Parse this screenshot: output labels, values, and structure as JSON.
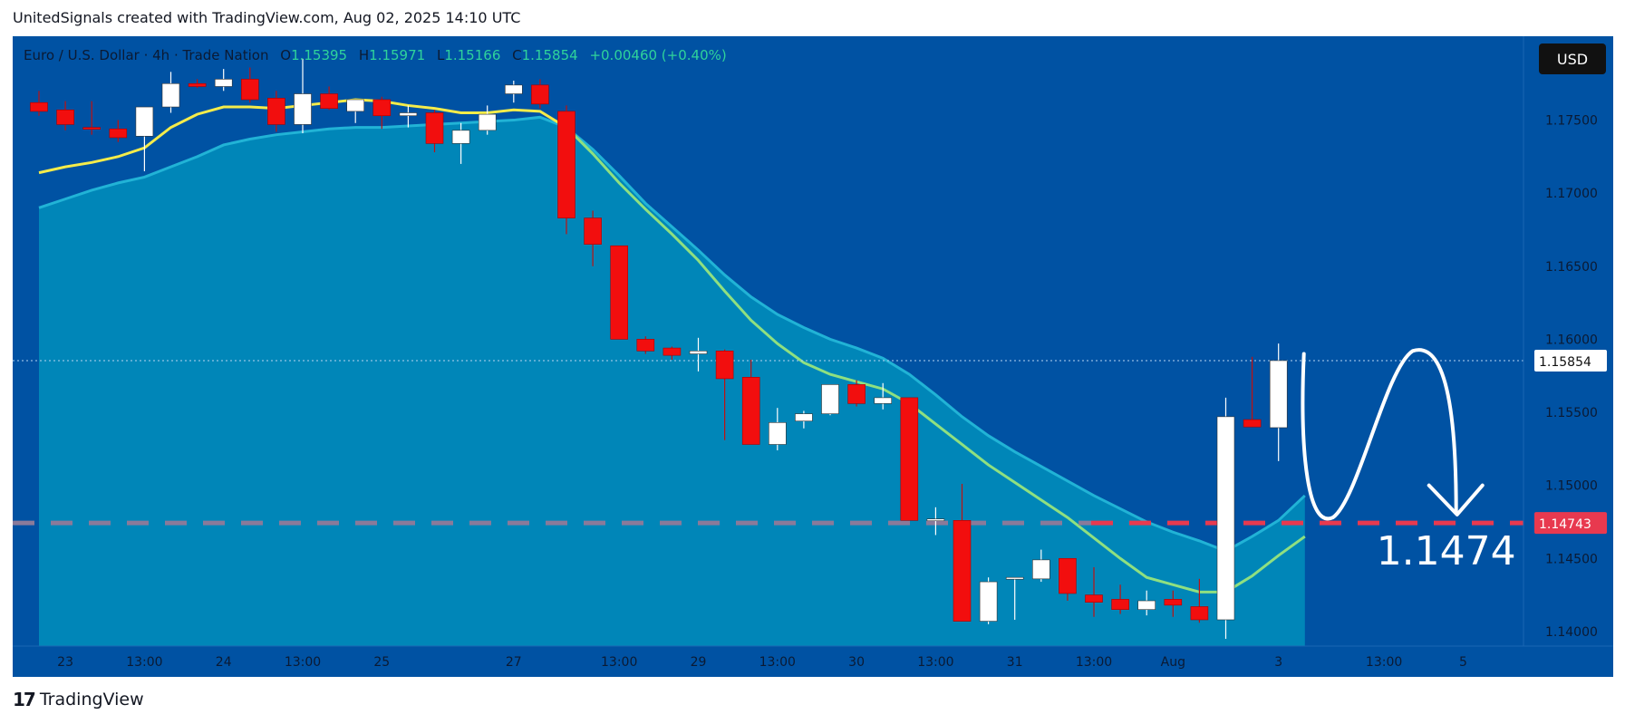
{
  "header": {
    "text": "UnitedSignals created with TradingView.com, Aug 02, 2025 14:10 UTC"
  },
  "legend": {
    "symbol": "Euro / U.S. Dollar · 4h · Trade Nation",
    "o_label": "O",
    "o_value": "1.15395",
    "h_label": "H",
    "h_value": "1.15971",
    "l_label": "L",
    "l_value": "1.15166",
    "c_label": "C",
    "c_value": "1.15854",
    "change": "+0.00460 (+0.40%)"
  },
  "currency_button": "USD",
  "footer": {
    "brand": "TradingView",
    "logo": "17"
  },
  "colors": {
    "background": "#0052a3",
    "cloud_fill": "#0086b8",
    "bull_candle": "#ffffff",
    "bear_candle": "#f20e0e",
    "ma_fast": "#f5ec4a",
    "ma_fast_lower": "#8fe080",
    "ma_slow": "#21b3d6",
    "level_line": "#e8394f",
    "arrow": "#ffffff"
  },
  "chart_data": {
    "type": "candlestick",
    "title": "Euro / U.S. Dollar · 4h · Trade Nation",
    "ylim": [
      1.139,
      1.1795
    ],
    "y_ticks": [
      {
        "value": 1.175,
        "label": "1.17500"
      },
      {
        "value": 1.17,
        "label": "1.17000"
      },
      {
        "value": 1.165,
        "label": "1.16500"
      },
      {
        "value": 1.16,
        "label": "1.16000"
      },
      {
        "value": 1.155,
        "label": "1.15500"
      },
      {
        "value": 1.15,
        "label": "1.15000"
      },
      {
        "value": 1.145,
        "label": "1.14500"
      },
      {
        "value": 1.14,
        "label": "1.14000"
      }
    ],
    "x_ticks": [
      {
        "i": 1,
        "label": "23"
      },
      {
        "i": 4,
        "label": "13:00"
      },
      {
        "i": 7,
        "label": "24"
      },
      {
        "i": 10,
        "label": "13:00"
      },
      {
        "i": 13,
        "label": "25"
      },
      {
        "i": 18,
        "label": "27"
      },
      {
        "i": 22,
        "label": "13:00"
      },
      {
        "i": 25,
        "label": "29"
      },
      {
        "i": 28,
        "label": "13:00"
      },
      {
        "i": 31,
        "label": "30"
      },
      {
        "i": 34,
        "label": "13:00"
      },
      {
        "i": 37,
        "label": "31"
      },
      {
        "i": 40,
        "label": "13:00"
      },
      {
        "i": 43,
        "label": "Aug"
      },
      {
        "i": 47,
        "label": "3"
      },
      {
        "i": 51,
        "label": "13:00"
      },
      {
        "i": 54,
        "label": "5"
      }
    ],
    "candles": [
      {
        "o": 1.1762,
        "h": 1.177,
        "l": 1.1753,
        "c": 1.1756
      },
      {
        "o": 1.1757,
        "h": 1.1763,
        "l": 1.1743,
        "c": 1.1747
      },
      {
        "o": 1.1745,
        "h": 1.1763,
        "l": 1.174,
        "c": 1.1744
      },
      {
        "o": 1.1744,
        "h": 1.175,
        "l": 1.1735,
        "c": 1.1738
      },
      {
        "o": 1.1739,
        "h": 1.1755,
        "l": 1.1715,
        "c": 1.1759
      },
      {
        "o": 1.1759,
        "h": 1.1783,
        "l": 1.1755,
        "c": 1.1775
      },
      {
        "o": 1.1775,
        "h": 1.1778,
        "l": 1.1772,
        "c": 1.1773
      },
      {
        "o": 1.1773,
        "h": 1.1785,
        "l": 1.177,
        "c": 1.1778
      },
      {
        "o": 1.1778,
        "h": 1.1786,
        "l": 1.1762,
        "c": 1.1764
      },
      {
        "o": 1.1765,
        "h": 1.177,
        "l": 1.1742,
        "c": 1.1747
      },
      {
        "o": 1.1747,
        "h": 1.1792,
        "l": 1.1741,
        "c": 1.1768
      },
      {
        "o": 1.1768,
        "h": 1.1773,
        "l": 1.1757,
        "c": 1.1758
      },
      {
        "o": 1.1756,
        "h": 1.1764,
        "l": 1.1748,
        "c": 1.1764
      },
      {
        "o": 1.1764,
        "h": 1.1766,
        "l": 1.1744,
        "c": 1.1753
      },
      {
        "o": 1.1753,
        "h": 1.176,
        "l": 1.1745,
        "c": 1.1755
      },
      {
        "o": 1.1755,
        "h": 1.1757,
        "l": 1.1728,
        "c": 1.1734
      },
      {
        "o": 1.1734,
        "h": 1.1748,
        "l": 1.172,
        "c": 1.1743
      },
      {
        "o": 1.1743,
        "h": 1.176,
        "l": 1.174,
        "c": 1.1754
      },
      {
        "o": 1.1768,
        "h": 1.1777,
        "l": 1.1762,
        "c": 1.1774
      },
      {
        "o": 1.1774,
        "h": 1.1778,
        "l": 1.1758,
        "c": 1.1761
      },
      {
        "o": 1.1756,
        "h": 1.176,
        "l": 1.1672,
        "c": 1.1683
      },
      {
        "o": 1.1683,
        "h": 1.1688,
        "l": 1.165,
        "c": 1.1665
      },
      {
        "o": 1.1664,
        "h": 1.1664,
        "l": 1.16,
        "c": 1.16
      },
      {
        "o": 1.16,
        "h": 1.1602,
        "l": 1.159,
        "c": 1.1592
      },
      {
        "o": 1.1594,
        "h": 1.1595,
        "l": 1.1586,
        "c": 1.1589
      },
      {
        "o": 1.159,
        "h": 1.1601,
        "l": 1.1578,
        "c": 1.1592
      },
      {
        "o": 1.1592,
        "h": 1.1593,
        "l": 1.1531,
        "c": 1.1573
      },
      {
        "o": 1.1574,
        "h": 1.1586,
        "l": 1.1528,
        "c": 1.1528
      },
      {
        "o": 1.1528,
        "h": 1.1553,
        "l": 1.1524,
        "c": 1.1543
      },
      {
        "o": 1.1544,
        "h": 1.1551,
        "l": 1.1539,
        "c": 1.1549
      },
      {
        "o": 1.1549,
        "h": 1.1569,
        "l": 1.1548,
        "c": 1.1569
      },
      {
        "o": 1.1569,
        "h": 1.1572,
        "l": 1.1554,
        "c": 1.1556
      },
      {
        "o": 1.1556,
        "h": 1.157,
        "l": 1.1552,
        "c": 1.156
      },
      {
        "o": 1.156,
        "h": 1.156,
        "l": 1.1476,
        "c": 1.1476
      },
      {
        "o": 1.1477,
        "h": 1.1485,
        "l": 1.1466,
        "c": 1.1477
      },
      {
        "o": 1.1476,
        "h": 1.1501,
        "l": 1.1407,
        "c": 1.1407
      },
      {
        "o": 1.1407,
        "h": 1.1437,
        "l": 1.1405,
        "c": 1.1434
      },
      {
        "o": 1.1436,
        "h": 1.1436,
        "l": 1.1408,
        "c": 1.1437
      },
      {
        "o": 1.1436,
        "h": 1.1456,
        "l": 1.1434,
        "c": 1.1449
      },
      {
        "o": 1.145,
        "h": 1.145,
        "l": 1.1421,
        "c": 1.1426
      },
      {
        "o": 1.1425,
        "h": 1.1444,
        "l": 1.141,
        "c": 1.142
      },
      {
        "o": 1.1422,
        "h": 1.1432,
        "l": 1.1412,
        "c": 1.1415
      },
      {
        "o": 1.1415,
        "h": 1.1428,
        "l": 1.1411,
        "c": 1.1421
      },
      {
        "o": 1.1422,
        "h": 1.1428,
        "l": 1.141,
        "c": 1.1418
      },
      {
        "o": 1.1417,
        "h": 1.1436,
        "l": 1.1406,
        "c": 1.1408
      },
      {
        "o": 1.1408,
        "h": 1.156,
        "l": 1.1395,
        "c": 1.1547
      },
      {
        "o": 1.1545,
        "h": 1.1588,
        "l": 1.154,
        "c": 1.154
      },
      {
        "o": 1.15395,
        "h": 1.15971,
        "l": 1.15166,
        "c": 1.15854
      }
    ],
    "ma_fast": [
      1.1714,
      1.1718,
      1.1721,
      1.1725,
      1.1731,
      1.1745,
      1.1754,
      1.1759,
      1.1759,
      1.1758,
      1.176,
      1.1762,
      1.1764,
      1.1763,
      1.176,
      1.1758,
      1.1755,
      1.1755,
      1.1757,
      1.1756,
      1.1745,
      1.1727,
      1.1707,
      1.1689,
      1.1672,
      1.1654,
      1.1633,
      1.1613,
      1.1597,
      1.1584,
      1.1576,
      1.1571,
      1.1566,
      1.1556,
      1.1542,
      1.1528,
      1.1514,
      1.1502,
      1.149,
      1.1478,
      1.1464,
      1.145,
      1.1437,
      1.1432,
      1.1427,
      1.1427,
      1.1438,
      1.1452,
      1.1465
    ],
    "ma_slow": [
      1.169,
      1.1696,
      1.1702,
      1.1707,
      1.1711,
      1.1718,
      1.1725,
      1.1733,
      1.1737,
      1.174,
      1.1742,
      1.1744,
      1.1745,
      1.1745,
      1.1746,
      1.1747,
      1.1748,
      1.1749,
      1.175,
      1.1752,
      1.1745,
      1.173,
      1.1712,
      1.1693,
      1.1677,
      1.1661,
      1.1644,
      1.1629,
      1.1617,
      1.1608,
      1.16,
      1.1594,
      1.1587,
      1.1576,
      1.1562,
      1.1547,
      1.1534,
      1.1523,
      1.1513,
      1.1503,
      1.1493,
      1.1484,
      1.1475,
      1.1468,
      1.1462,
      1.1455,
      1.1465,
      1.1476,
      1.1493
    ],
    "level_price": 1.14743,
    "level_label": "1.14743",
    "last_price": 1.15854,
    "last_label": "1.15854",
    "target_text": "1.1474"
  }
}
